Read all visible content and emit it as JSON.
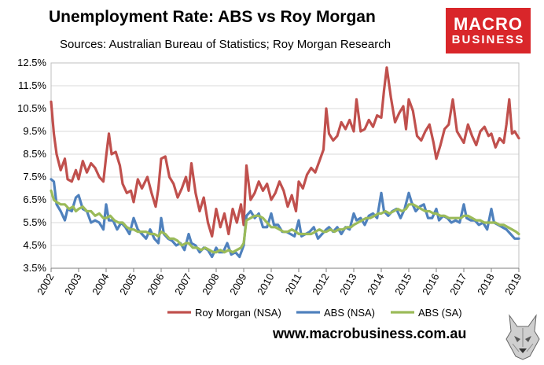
{
  "header": {
    "title": "Unemployment Rate: ABS vs Roy Morgan",
    "subtitle": "Sources: Australian Bureau of Statistics; Roy Morgan Research"
  },
  "logo": {
    "line1": "MACRO",
    "line2": "BUSINESS",
    "color": "#d9262a"
  },
  "footer": {
    "url": "www.macrobusiness.com.au",
    "mascot_icon": "wolf-icon"
  },
  "chart_data": {
    "type": "line",
    "title": "Unemployment Rate: ABS vs Roy Morgan",
    "subtitle": "Sources: Australian Bureau of Statistics; Roy Morgan Research",
    "xlabel": "",
    "ylabel": "",
    "x_range": [
      2002,
      2019
    ],
    "ylim": [
      3.5,
      12.5
    ],
    "y_ticks": [
      3.5,
      4.5,
      5.5,
      6.5,
      7.5,
      8.5,
      9.5,
      10.5,
      11.5,
      12.5
    ],
    "y_tick_labels": [
      "3.5%",
      "4.5%",
      "5.5%",
      "6.5%",
      "7.5%",
      "8.5%",
      "9.5%",
      "10.5%",
      "11.5%",
      "12.5%"
    ],
    "x_ticks": [
      2002,
      2003,
      2004,
      2005,
      2006,
      2007,
      2008,
      2009,
      2010,
      2011,
      2012,
      2013,
      2014,
      2015,
      2016,
      2017,
      2018,
      2019
    ],
    "x_tick_labels": [
      "2002",
      "2003",
      "2004",
      "2005",
      "2006",
      "2007",
      "2008",
      "2009",
      "2010",
      "2011",
      "2012",
      "2013",
      "2014",
      "2015",
      "2016",
      "2017",
      "2018",
      "2019"
    ],
    "grid": true,
    "legend_position": "bottom",
    "series": [
      {
        "name": "Roy Morgan (NSA)",
        "color": "#c0504d",
        "x": [
          2002.0,
          2002.1,
          2002.2,
          2002.35,
          2002.5,
          2002.6,
          2002.75,
          2002.9,
          2003.0,
          2003.15,
          2003.3,
          2003.45,
          2003.6,
          2003.75,
          2003.9,
          2004.0,
          2004.1,
          2004.2,
          2004.35,
          2004.5,
          2004.6,
          2004.75,
          2004.9,
          2005.0,
          2005.15,
          2005.3,
          2005.5,
          2005.65,
          2005.8,
          2005.9,
          2006.0,
          2006.15,
          2006.3,
          2006.45,
          2006.6,
          2006.75,
          2006.9,
          2007.0,
          2007.1,
          2007.25,
          2007.4,
          2007.55,
          2007.7,
          2007.85,
          2008.0,
          2008.15,
          2008.3,
          2008.45,
          2008.6,
          2008.75,
          2008.9,
          2009.0,
          2009.1,
          2009.25,
          2009.4,
          2009.55,
          2009.7,
          2009.85,
          2010.0,
          2010.15,
          2010.3,
          2010.45,
          2010.6,
          2010.75,
          2010.9,
          2011.0,
          2011.15,
          2011.3,
          2011.45,
          2011.6,
          2011.75,
          2011.9,
          2012.0,
          2012.1,
          2012.25,
          2012.4,
          2012.55,
          2012.7,
          2012.85,
          2013.0,
          2013.1,
          2013.25,
          2013.4,
          2013.55,
          2013.7,
          2013.85,
          2014.0,
          2014.1,
          2014.2,
          2014.35,
          2014.5,
          2014.65,
          2014.8,
          2014.9,
          2015.0,
          2015.15,
          2015.3,
          2015.45,
          2015.6,
          2015.75,
          2015.9,
          2016.0,
          2016.15,
          2016.3,
          2016.45,
          2016.6,
          2016.75,
          2016.9,
          2017.0,
          2017.15,
          2017.3,
          2017.45,
          2017.6,
          2017.75,
          2017.9,
          2018.0,
          2018.15,
          2018.3,
          2018.45,
          2018.55,
          2018.65,
          2018.75,
          2018.85,
          2019.0
        ],
        "values": [
          10.8,
          9.4,
          8.5,
          7.8,
          8.3,
          7.4,
          7.3,
          7.8,
          7.4,
          8.2,
          7.7,
          8.1,
          7.9,
          7.5,
          7.3,
          8.4,
          9.4,
          8.5,
          8.6,
          8.0,
          7.2,
          6.8,
          6.9,
          6.4,
          7.4,
          7.0,
          7.5,
          6.8,
          6.2,
          7.0,
          8.3,
          8.4,
          7.5,
          7.2,
          6.6,
          7.0,
          7.5,
          6.9,
          8.1,
          6.8,
          6.0,
          6.6,
          5.5,
          4.9,
          6.1,
          5.3,
          5.9,
          5.0,
          6.1,
          5.5,
          6.3,
          5.4,
          8.0,
          6.5,
          6.8,
          7.3,
          6.9,
          7.2,
          6.5,
          6.8,
          7.3,
          6.9,
          6.2,
          6.7,
          6.0,
          7.3,
          7.0,
          7.6,
          7.9,
          7.7,
          8.2,
          8.7,
          10.5,
          9.4,
          9.1,
          9.3,
          9.9,
          9.6,
          10.0,
          9.5,
          10.9,
          9.5,
          9.6,
          10.0,
          9.7,
          10.2,
          10.1,
          11.3,
          12.3,
          11.0,
          9.9,
          10.3,
          10.6,
          9.6,
          10.9,
          10.4,
          9.3,
          9.1,
          9.5,
          9.8,
          9.0,
          8.3,
          8.9,
          9.6,
          9.8,
          10.9,
          9.5,
          9.2,
          9.0,
          9.8,
          9.3,
          8.9,
          9.5,
          9.7,
          9.3,
          9.4,
          8.8,
          9.2,
          9.0,
          9.8,
          10.9,
          9.4,
          9.5,
          9.2
        ]
      },
      {
        "name": "ABS (NSA)",
        "color": "#4f81bd",
        "x": [
          2002.0,
          2002.1,
          2002.2,
          2002.35,
          2002.5,
          2002.6,
          2002.75,
          2002.9,
          2003.0,
          2003.15,
          2003.3,
          2003.45,
          2003.6,
          2003.75,
          2003.9,
          2004.0,
          2004.1,
          2004.25,
          2004.4,
          2004.55,
          2004.7,
          2004.85,
          2005.0,
          2005.15,
          2005.3,
          2005.45,
          2005.6,
          2005.75,
          2005.9,
          2006.0,
          2006.1,
          2006.25,
          2006.4,
          2006.55,
          2006.7,
          2006.85,
          2007.0,
          2007.1,
          2007.25,
          2007.4,
          2007.55,
          2007.7,
          2007.85,
          2008.0,
          2008.1,
          2008.25,
          2008.4,
          2008.55,
          2008.7,
          2008.85,
          2009.0,
          2009.1,
          2009.25,
          2009.4,
          2009.55,
          2009.7,
          2009.85,
          2010.0,
          2010.1,
          2010.25,
          2010.4,
          2010.55,
          2010.7,
          2010.85,
          2011.0,
          2011.1,
          2011.25,
          2011.4,
          2011.55,
          2011.7,
          2011.85,
          2012.0,
          2012.1,
          2012.25,
          2012.4,
          2012.55,
          2012.7,
          2012.85,
          2013.0,
          2013.1,
          2013.25,
          2013.4,
          2013.55,
          2013.7,
          2013.85,
          2014.0,
          2014.1,
          2014.25,
          2014.4,
          2014.55,
          2014.7,
          2014.85,
          2015.0,
          2015.1,
          2015.25,
          2015.4,
          2015.55,
          2015.7,
          2015.85,
          2016.0,
          2016.1,
          2016.25,
          2016.4,
          2016.55,
          2016.7,
          2016.85,
          2017.0,
          2017.1,
          2017.25,
          2017.4,
          2017.55,
          2017.7,
          2017.85,
          2018.0,
          2018.1,
          2018.25,
          2018.4,
          2018.55,
          2018.7,
          2018.85,
          2019.0
        ],
        "values": [
          7.4,
          7.3,
          6.3,
          6.0,
          5.6,
          6.1,
          6.0,
          6.6,
          6.7,
          6.1,
          6.0,
          5.5,
          5.6,
          5.5,
          5.2,
          6.3,
          5.6,
          5.6,
          5.2,
          5.5,
          5.3,
          5.0,
          5.7,
          5.2,
          5.0,
          4.8,
          5.2,
          4.8,
          4.6,
          5.7,
          5.0,
          4.8,
          4.7,
          4.5,
          4.6,
          4.3,
          5.0,
          4.6,
          4.5,
          4.2,
          4.4,
          4.3,
          4.0,
          4.4,
          4.2,
          4.2,
          4.6,
          4.1,
          4.2,
          4.0,
          4.5,
          5.8,
          6.0,
          5.7,
          5.9,
          5.3,
          5.3,
          5.9,
          5.4,
          5.4,
          5.1,
          5.1,
          5.0,
          4.9,
          5.6,
          4.9,
          5.0,
          5.1,
          5.3,
          4.8,
          5.0,
          5.2,
          5.3,
          5.1,
          5.3,
          5.0,
          5.3,
          5.2,
          5.9,
          5.6,
          5.7,
          5.4,
          5.8,
          5.9,
          5.7,
          6.8,
          6.0,
          5.8,
          6.0,
          6.1,
          5.7,
          6.1,
          6.8,
          6.4,
          6.0,
          6.2,
          6.3,
          5.7,
          5.7,
          6.1,
          5.6,
          5.8,
          5.7,
          5.5,
          5.6,
          5.5,
          6.3,
          5.7,
          5.6,
          5.6,
          5.4,
          5.5,
          5.2,
          6.1,
          5.5,
          5.4,
          5.3,
          5.2,
          5.0,
          4.8,
          4.8
        ]
      },
      {
        "name": "ABS (SA)",
        "color": "#9bbb59",
        "x": [
          2002.0,
          2002.1,
          2002.2,
          2002.35,
          2002.5,
          2002.65,
          2002.8,
          2002.9,
          2003.0,
          2003.15,
          2003.3,
          2003.45,
          2003.6,
          2003.75,
          2003.9,
          2004.0,
          2004.15,
          2004.3,
          2004.45,
          2004.6,
          2004.75,
          2004.9,
          2005.0,
          2005.15,
          2005.3,
          2005.45,
          2005.6,
          2005.75,
          2005.9,
          2006.0,
          2006.15,
          2006.3,
          2006.45,
          2006.6,
          2006.75,
          2006.9,
          2007.0,
          2007.15,
          2007.3,
          2007.45,
          2007.6,
          2007.75,
          2007.9,
          2008.0,
          2008.15,
          2008.3,
          2008.45,
          2008.6,
          2008.75,
          2008.9,
          2009.0,
          2009.1,
          2009.25,
          2009.4,
          2009.55,
          2009.7,
          2009.85,
          2010.0,
          2010.15,
          2010.3,
          2010.45,
          2010.6,
          2010.75,
          2010.9,
          2011.0,
          2011.15,
          2011.3,
          2011.45,
          2011.6,
          2011.75,
          2011.9,
          2012.0,
          2012.15,
          2012.3,
          2012.45,
          2012.6,
          2012.75,
          2012.9,
          2013.0,
          2013.15,
          2013.3,
          2013.45,
          2013.6,
          2013.75,
          2013.9,
          2014.0,
          2014.15,
          2014.3,
          2014.45,
          2014.6,
          2014.75,
          2014.9,
          2015.0,
          2015.15,
          2015.3,
          2015.45,
          2015.6,
          2015.75,
          2015.9,
          2016.0,
          2016.15,
          2016.3,
          2016.45,
          2016.6,
          2016.75,
          2016.9,
          2017.0,
          2017.15,
          2017.3,
          2017.45,
          2017.6,
          2017.75,
          2017.9,
          2018.0,
          2018.15,
          2018.3,
          2018.45,
          2018.6,
          2018.75,
          2018.9,
          2019.0
        ],
        "values": [
          6.9,
          6.5,
          6.4,
          6.3,
          6.3,
          6.1,
          6.2,
          6.0,
          6.1,
          6.2,
          6.0,
          6.0,
          5.8,
          5.9,
          5.7,
          5.7,
          5.8,
          5.6,
          5.5,
          5.5,
          5.3,
          5.2,
          5.2,
          5.1,
          5.1,
          5.1,
          5.0,
          5.0,
          4.9,
          5.1,
          5.0,
          4.8,
          4.8,
          4.7,
          4.5,
          4.6,
          4.6,
          4.4,
          4.4,
          4.3,
          4.4,
          4.3,
          4.2,
          4.2,
          4.3,
          4.2,
          4.3,
          4.2,
          4.3,
          4.4,
          4.6,
          5.6,
          5.7,
          5.8,
          5.8,
          5.7,
          5.5,
          5.3,
          5.3,
          5.2,
          5.1,
          5.1,
          5.2,
          5.1,
          5.0,
          5.0,
          5.0,
          5.0,
          5.1,
          5.2,
          5.1,
          5.1,
          5.2,
          5.1,
          5.2,
          5.2,
          5.3,
          5.3,
          5.4,
          5.5,
          5.6,
          5.7,
          5.7,
          5.8,
          5.9,
          5.9,
          6.0,
          5.9,
          6.0,
          6.1,
          6.0,
          6.1,
          6.3,
          6.3,
          6.2,
          6.1,
          6.0,
          6.0,
          5.9,
          5.9,
          5.8,
          5.8,
          5.7,
          5.7,
          5.7,
          5.7,
          5.8,
          5.8,
          5.7,
          5.6,
          5.6,
          5.5,
          5.5,
          5.5,
          5.5,
          5.4,
          5.4,
          5.3,
          5.2,
          5.1,
          5.0
        ]
      }
    ]
  }
}
